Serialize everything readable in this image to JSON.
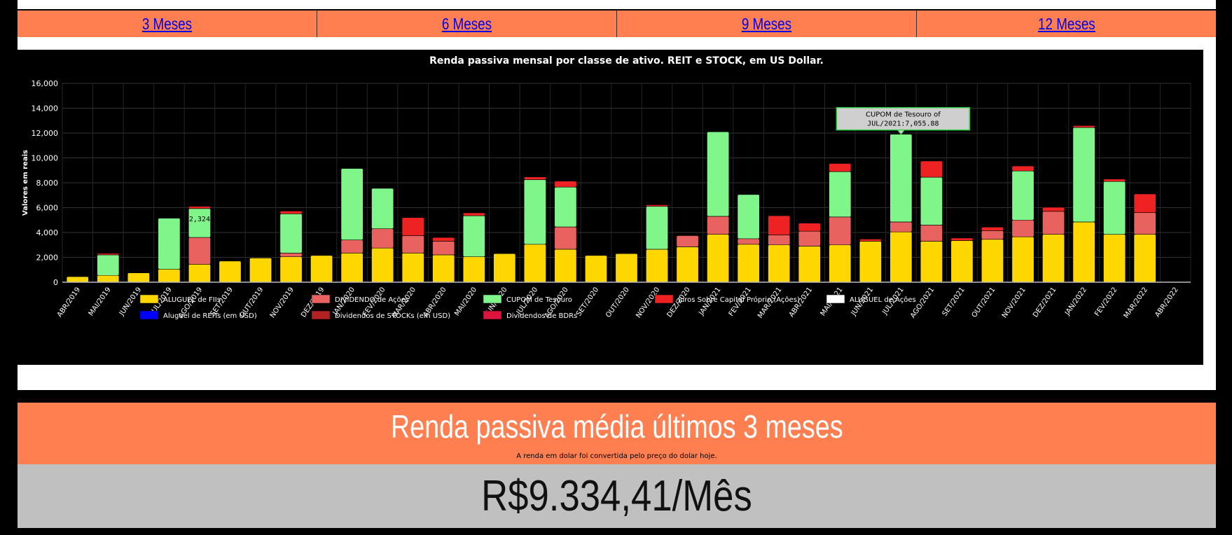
{
  "tabs": [
    {
      "label": "3 Meses"
    },
    {
      "label": "6 Meses"
    },
    {
      "label": "9 Meses"
    },
    {
      "label": "12 Meses"
    }
  ],
  "summary": {
    "title": "Renda passiva média últimos 3 meses",
    "note": "A renda em dolar foi convertida pelo preço do dolar hoje.",
    "value": "R$9.334,41/Mês"
  },
  "chart_data": {
    "type": "bar",
    "stacked": true,
    "title": "Renda passiva mensal por classe de ativo. REIT e STOCK, em US Dollar.",
    "ylabel": "Valores em reais",
    "xlabel": "",
    "ylim": [
      0,
      16000
    ],
    "yticks": [
      "0",
      "2,000",
      "4,000",
      "6,000",
      "8,000",
      "10,000",
      "12,000",
      "14,000",
      "16,000"
    ],
    "grid": true,
    "legend_position": "bottom",
    "categories": [
      "ABR/2019",
      "MAI/2019",
      "JUN/2019",
      "JUL/2019",
      "AGO/2019",
      "SET/2019",
      "OUT/2019",
      "NOV/2019",
      "DEZ/2019",
      "JAN/2020",
      "FEV/2020",
      "MAR/2020",
      "ABR/2020",
      "MAI/2020",
      "JUN/2020",
      "JUL/2020",
      "AGO/2020",
      "SET/2020",
      "OUT/2020",
      "NOV/2020",
      "DEZ/2020",
      "JAN/2021",
      "FEV/2021",
      "MAR/2021",
      "ABR/2021",
      "MAI/2021",
      "JUN/2021",
      "JUL/2021",
      "AGO/2021",
      "SET/2021",
      "OUT/2021",
      "NOV/2021",
      "DEZ/2021",
      "JAN/2022",
      "FEV/2022",
      "MAR/2022",
      "ABR/2022"
    ],
    "series": [
      {
        "name": "ALUGUEL de FIIs",
        "color": "#ffd700",
        "values": [
          450,
          550,
          750,
          1050,
          1450,
          1700,
          1950,
          2050,
          2150,
          2350,
          2750,
          2350,
          2200,
          2050,
          2300,
          3050,
          2650,
          2150,
          2300,
          2650,
          2850,
          3850,
          3050,
          3000,
          2900,
          3000,
          3300,
          4050,
          3300,
          3350,
          3450,
          3650,
          3850,
          4850,
          3850,
          3850,
          0
        ]
      },
      {
        "name": "DIVIDENDO de Ações",
        "color": "#e8635f",
        "values": [
          0,
          0,
          0,
          0,
          2150,
          0,
          0,
          300,
          0,
          1050,
          1550,
          1400,
          1100,
          0,
          0,
          0,
          1800,
          0,
          0,
          0,
          900,
          1450,
          450,
          800,
          1200,
          2250,
          0,
          800,
          1300,
          0,
          700,
          1350,
          1850,
          0,
          0,
          1750,
          0
        ]
      },
      {
        "name": "CUPOM de Tesouro",
        "color": "#80f58a",
        "values": [
          0,
          1650,
          0,
          4100,
          2324,
          0,
          0,
          3150,
          0,
          5750,
          3250,
          0,
          0,
          3300,
          0,
          5200,
          3200,
          0,
          0,
          3450,
          0,
          6800,
          3550,
          0,
          0,
          3650,
          0,
          7055.88,
          3850,
          0,
          0,
          3950,
          0,
          7600,
          4250,
          0,
          0
        ]
      },
      {
        "name": "Juros Sobre Capital Próprio (Ações)",
        "color": "#ee2222",
        "values": [
          0,
          120,
          0,
          0,
          180,
          0,
          0,
          230,
          0,
          0,
          0,
          1450,
          300,
          230,
          0,
          220,
          480,
          0,
          0,
          130,
          0,
          0,
          0,
          1550,
          650,
          650,
          170,
          0,
          1300,
          200,
          280,
          400,
          330,
          150,
          200,
          1500,
          0
        ]
      },
      {
        "name": "ALUGUEL de Ações",
        "color": "#ffffff",
        "values": [
          0,
          0,
          0,
          0,
          0,
          0,
          0,
          0,
          0,
          0,
          0,
          0,
          0,
          0,
          0,
          0,
          0,
          0,
          0,
          0,
          0,
          0,
          0,
          0,
          0,
          0,
          0,
          0,
          0,
          0,
          0,
          0,
          0,
          0,
          0,
          0,
          0
        ]
      },
      {
        "name": "Aluguel de REITs (em USD)",
        "color": "#0000ff",
        "values": [
          0,
          0,
          0,
          0,
          0,
          0,
          0,
          0,
          0,
          0,
          0,
          0,
          0,
          0,
          0,
          0,
          0,
          0,
          0,
          0,
          0,
          0,
          0,
          0,
          0,
          0,
          0,
          0,
          0,
          0,
          0,
          0,
          0,
          0,
          0,
          0,
          0
        ]
      },
      {
        "name": "Dividendos de STOCKs (em USD)",
        "color": "#b22222",
        "values": [
          0,
          0,
          0,
          0,
          0,
          0,
          0,
          0,
          0,
          0,
          0,
          0,
          0,
          0,
          0,
          0,
          0,
          0,
          0,
          0,
          0,
          0,
          0,
          0,
          0,
          0,
          0,
          0,
          0,
          0,
          0,
          0,
          0,
          0,
          0,
          0,
          0
        ]
      },
      {
        "name": "Dividendos de BDRs",
        "color": "#dc143c",
        "values": [
          0,
          0,
          0,
          0,
          0,
          0,
          0,
          0,
          0,
          0,
          0,
          0,
          0,
          0,
          0,
          0,
          0,
          0,
          0,
          0,
          0,
          0,
          0,
          0,
          0,
          0,
          0,
          0,
          0,
          0,
          0,
          0,
          0,
          0,
          0,
          0,
          0
        ]
      }
    ],
    "data_label": {
      "text": "2,324",
      "category": "AGO/2019",
      "series": "CUPOM de Tesouro"
    },
    "tooltip": {
      "line1": "CUPOM de Tesouro of",
      "line2": "JUL/2021:7,055.88",
      "category": "JUL/2021"
    }
  }
}
